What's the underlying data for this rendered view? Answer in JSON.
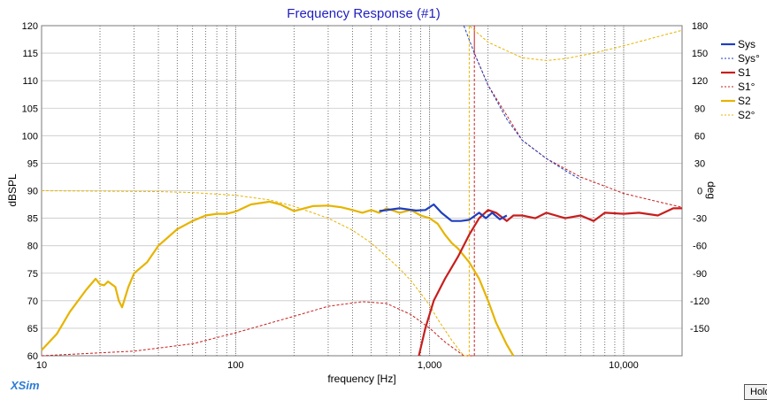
{
  "brand": "XSim",
  "hold_button": "Hold",
  "chart_data": {
    "type": "line",
    "title": "Frequency Response (#1)",
    "xlabel": "frequency [Hz]",
    "ylabel": "dBSPL",
    "y2label": "deg",
    "xscale": "log",
    "xlim": [
      10,
      20000
    ],
    "ylim": [
      60,
      120
    ],
    "y2lim": [
      -180,
      180
    ],
    "grid": true,
    "legend_position": "right",
    "xticks": [
      {
        "value": 10,
        "label": "10"
      },
      {
        "value": 100,
        "label": "100"
      },
      {
        "value": 1000,
        "label": "1,000"
      },
      {
        "value": 10000,
        "label": "10,000"
      }
    ],
    "yticks": [
      60,
      65,
      70,
      75,
      80,
      85,
      90,
      95,
      100,
      105,
      110,
      115,
      120
    ],
    "y2ticks": [
      -150,
      -120,
      -90,
      -60,
      -30,
      0,
      30,
      60,
      90,
      120,
      150,
      180
    ],
    "colors": {
      "Sys": "#1f3fbf",
      "S1": "#c81e1e",
      "S2": "#e6b400"
    },
    "series": [
      {
        "name": "Sys",
        "axis": "left",
        "style": "solid",
        "x": [
          550,
          700,
          850,
          950,
          1050,
          1150,
          1300,
          1450,
          1600,
          1800,
          1950,
          2100,
          2300,
          2500
        ],
        "y": [
          86.3,
          86.8,
          86.4,
          86.5,
          87.5,
          86.0,
          84.5,
          84.5,
          84.7,
          86.0,
          85.0,
          86.0,
          84.8,
          85.5
        ]
      },
      {
        "name": "Sys°",
        "axis": "right",
        "style": "dashed",
        "x": [
          1500,
          1700,
          2000,
          2500,
          3000,
          4000,
          5000,
          6000
        ],
        "y": [
          180,
          150,
          115,
          78,
          55,
          35,
          22,
          12
        ]
      },
      {
        "name": "S1",
        "axis": "left",
        "style": "solid",
        "x": [
          880,
          950,
          1050,
          1200,
          1400,
          1600,
          1800,
          2000,
          2200,
          2500,
          2700,
          3000,
          3500,
          4000,
          5000,
          6000,
          7000,
          8000,
          10000,
          12000,
          15000,
          18000,
          20000
        ],
        "y": [
          60,
          65,
          70,
          74,
          78,
          82,
          85,
          86.5,
          86.0,
          84.5,
          85.5,
          85.5,
          85.0,
          86.0,
          85.0,
          85.5,
          84.5,
          86.0,
          85.8,
          86.0,
          85.5,
          86.8,
          86.8
        ]
      },
      {
        "name": "S1°",
        "axis": "right",
        "style": "dashed",
        "x": [
          10,
          30,
          60,
          100,
          200,
          300,
          450,
          600,
          800,
          1000,
          1200,
          1500,
          1700,
          2000,
          3000,
          4000,
          6000,
          10000,
          15000,
          20000
        ],
        "y": [
          -180,
          -175,
          -167,
          -155,
          -137,
          -126,
          -121,
          -123,
          -135,
          -150,
          -165,
          -180,
          150,
          115,
          55,
          35,
          15,
          -3,
          -12,
          -18
        ]
      },
      {
        "name": "S2",
        "axis": "left",
        "style": "solid",
        "x": [
          10,
          12,
          14,
          17,
          19,
          20,
          21,
          22,
          24,
          25,
          26,
          28,
          30,
          35,
          40,
          50,
          60,
          70,
          80,
          90,
          100,
          120,
          150,
          170,
          200,
          250,
          300,
          350,
          400,
          450,
          500,
          550,
          600,
          700,
          800,
          900,
          1000,
          1100,
          1200,
          1300,
          1400,
          1600,
          1800,
          2000,
          2200,
          2500,
          2700
        ],
        "y": [
          61.0,
          64.0,
          68.0,
          72.0,
          74.0,
          73.0,
          72.8,
          73.5,
          72.5,
          70.0,
          68.8,
          72.5,
          75.0,
          77.0,
          80.0,
          83.0,
          84.5,
          85.5,
          85.8,
          85.8,
          86.2,
          87.5,
          88.0,
          87.5,
          86.3,
          87.2,
          87.3,
          87.0,
          86.5,
          86.0,
          86.5,
          86.0,
          86.8,
          86.0,
          86.5,
          85.5,
          85.0,
          84.0,
          82.0,
          80.5,
          79.5,
          77.0,
          74.0,
          70.0,
          66.0,
          62.0,
          60.0
        ]
      },
      {
        "name": "S2°",
        "axis": "right",
        "style": "dashed",
        "x": [
          10,
          20,
          40,
          60,
          100,
          150,
          200,
          300,
          400,
          500,
          600,
          700,
          800,
          900,
          1000,
          1100,
          1200,
          1300,
          1400,
          1500,
          1600,
          2000,
          3000,
          4000,
          5000,
          7000,
          10000,
          15000,
          20000
        ],
        "y": [
          0,
          -0.5,
          -1,
          -2,
          -5,
          -10,
          -17,
          -30,
          -43,
          -57,
          -72,
          -85,
          -98,
          -112,
          -125,
          -140,
          -152,
          -163,
          -172,
          -180,
          180,
          162,
          145,
          142,
          144,
          150,
          158,
          168,
          175
        ]
      }
    ]
  }
}
